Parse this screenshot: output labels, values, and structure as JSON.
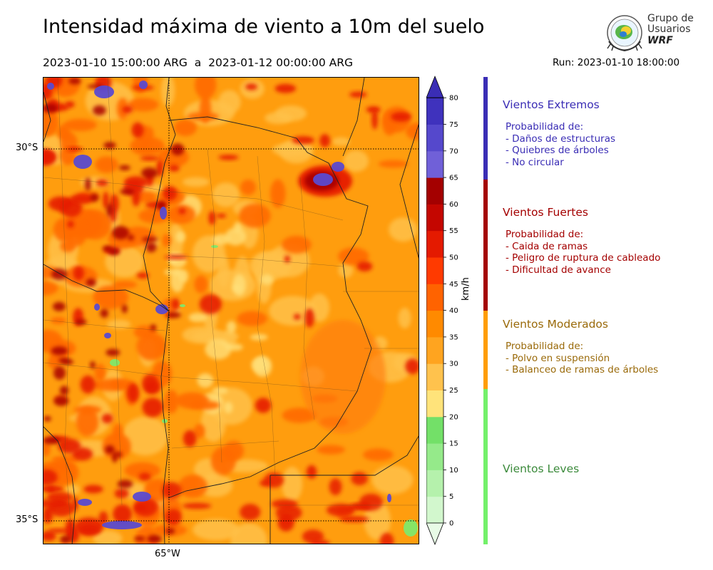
{
  "header": {
    "title": "Intensidad máxima de viento a 10m del suelo",
    "period": "2023-01-10 15:00:00 ARG  a  2023-01-12 00:00:00 ARG",
    "run": "Run: 2023-01-10 18:00:00"
  },
  "logo": {
    "line1": "Grupo de",
    "line2": "Usuarios",
    "line3": "WRF"
  },
  "map": {
    "lat_labels": [
      "30°S",
      "35°S"
    ],
    "lon_labels": [
      "65°W"
    ]
  },
  "colorbar": {
    "unit": "km/h",
    "ticks": [
      "0",
      "5",
      "10",
      "15",
      "20",
      "25",
      "30",
      "35",
      "40",
      "45",
      "50",
      "55",
      "60",
      "65",
      "70",
      "75",
      "80"
    ],
    "colors": [
      "#e8fbe6",
      "#d2f7cd",
      "#b5f1ac",
      "#95ea8a",
      "#73e068",
      "#ffe37a",
      "#ffc24d",
      "#ffa41f",
      "#ff8a00",
      "#ff6300",
      "#ff3a00",
      "#e41a00",
      "#c40600",
      "#a40000",
      "#7060d8",
      "#5548cc",
      "#3f32bd"
    ],
    "max_color": "#3a2db5"
  },
  "legend": [
    {
      "name": "Vientos Extremos",
      "color": "#3a2db5",
      "text_color": "#3a2db5",
      "items": [
        "Probabilidad de:",
        "- Daños de estructuras",
        "- Quiebres de árboles",
        "- No circular"
      ]
    },
    {
      "name": "Vientos Fuertes",
      "color": "#a40000",
      "text_color": "#a40000",
      "items": [
        "Probabilidad de:",
        "- Caida de ramas",
        "- Peligro de ruptura de cableado",
        "- Dificultad de avance"
      ]
    },
    {
      "name": "Vientos Moderados",
      "color": "#ff9d00",
      "text_color": "#9a6a0a",
      "items": [
        "Probabilidad de:",
        "- Polvo en suspensión",
        "- Balanceo de ramas de árboles"
      ]
    },
    {
      "name": "Vientos Leves",
      "color": "#73f06a",
      "text_color": "#3b8a3b",
      "items": []
    }
  ]
}
